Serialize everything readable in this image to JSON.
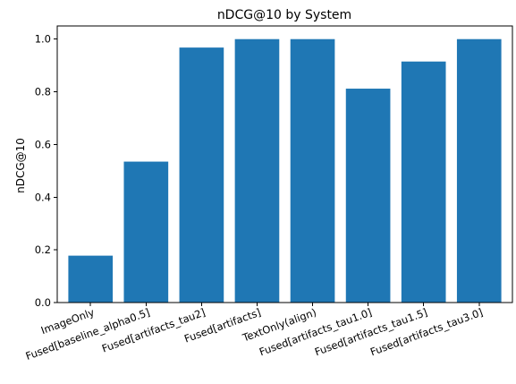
{
  "chart_data": {
    "type": "bar",
    "title": "nDCG@10 by System",
    "xlabel": "",
    "ylabel": "nDCG@10",
    "categories": [
      "ImageOnly",
      "Fused[baseline_alpha0.5]",
      "Fused[artifacts_tau2]",
      "Fused[artifacts]",
      "TextOnly(align)",
      "Fused[artifacts_tau1.0]",
      "Fused[artifacts_tau1.5]",
      "Fused[artifacts_tau3.0]"
    ],
    "values": [
      0.178,
      0.535,
      0.968,
      1.0,
      1.0,
      0.812,
      0.915,
      1.0
    ],
    "ylim": [
      0,
      1.05
    ],
    "yticks": [
      0.0,
      0.2,
      0.4,
      0.6,
      0.8,
      1.0
    ],
    "ytick_labels": [
      "0.0",
      "0.2",
      "0.4",
      "0.6",
      "0.8",
      "1.0"
    ],
    "bar_color": "#1f77b4",
    "grid": false,
    "legend": "none"
  }
}
